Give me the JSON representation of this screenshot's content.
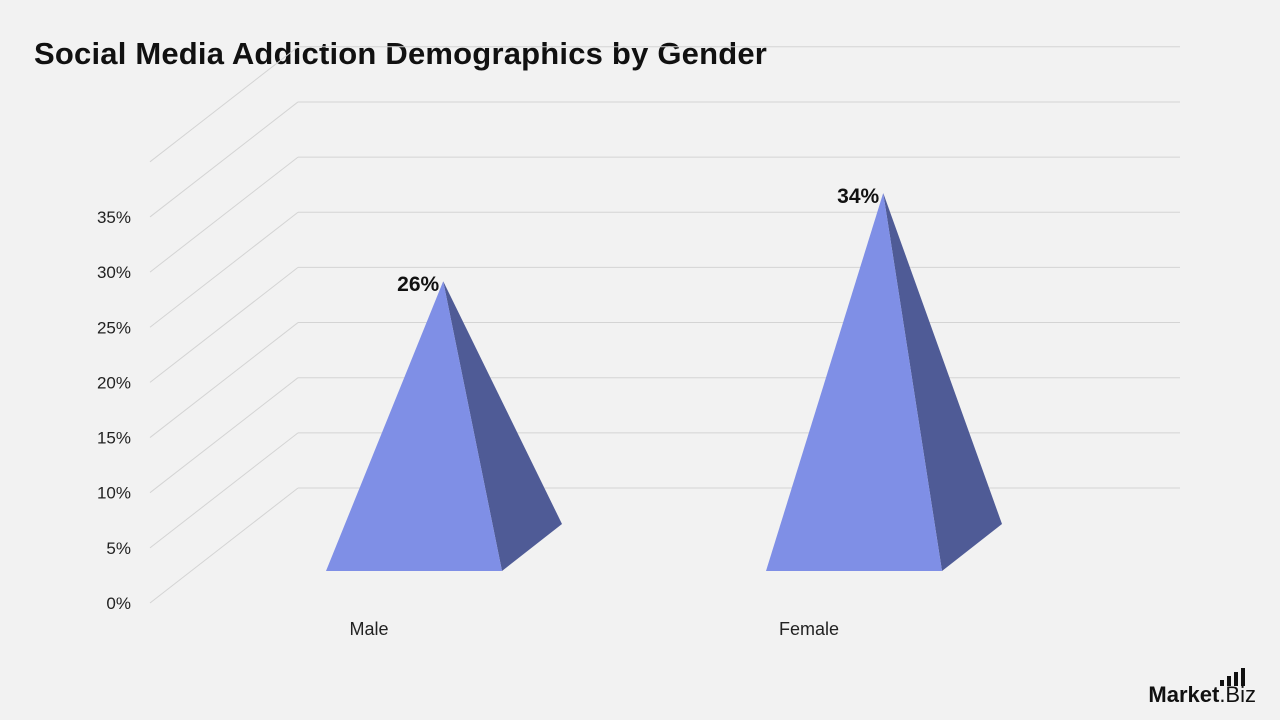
{
  "page": {
    "title": "Social Media Addiction Demographics by Gender"
  },
  "brand": {
    "name_bold": "Market",
    "name_rest": ".Biz",
    "icon": "bar-chart-logo-icon"
  },
  "chart_data": {
    "type": "bar",
    "style": "3d-pyramid",
    "title": "Social Media Addiction Demographics by Gender",
    "xlabel": "",
    "ylabel": "",
    "categories": [
      "Male",
      "Female"
    ],
    "values": [
      26,
      34
    ],
    "data_labels": [
      "26%",
      "34%"
    ],
    "yticks": [
      "0%",
      "5%",
      "10%",
      "15%",
      "20%",
      "25%",
      "30%",
      "35%"
    ],
    "ylim": [
      0,
      35
    ],
    "grid": true,
    "legend": "none",
    "colors": {
      "front_face": "#7f8fe6",
      "side_face": "#4f5b96",
      "grid": "#d4d4d4",
      "text": "#111111"
    }
  }
}
